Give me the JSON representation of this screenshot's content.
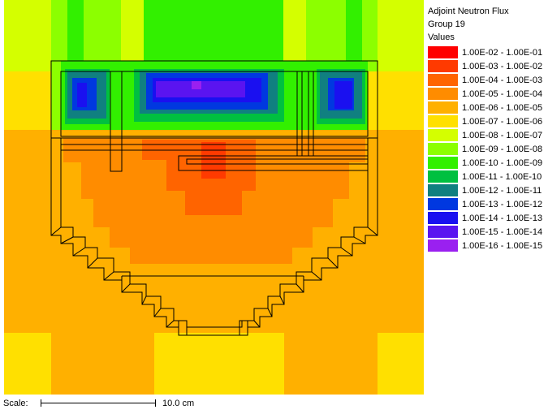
{
  "legend": {
    "title": "Adjoint Neutron Flux",
    "subtitle": "Group 19",
    "header": "Values",
    "items": [
      {
        "label": "1.00E-02 - 1.00E-01",
        "color": "#ff0000"
      },
      {
        "label": "1.00E-03 - 1.00E-02",
        "color": "#ff3a00"
      },
      {
        "label": "1.00E-04 - 1.00E-03",
        "color": "#ff6400"
      },
      {
        "label": "1.00E-05 - 1.00E-04",
        "color": "#ff8c00"
      },
      {
        "label": "1.00E-06 - 1.00E-05",
        "color": "#ffb000"
      },
      {
        "label": "1.00E-07 - 1.00E-06",
        "color": "#ffe000"
      },
      {
        "label": "1.00E-08 - 1.00E-07",
        "color": "#d4ff00"
      },
      {
        "label": "1.00E-09 - 1.00E-08",
        "color": "#8cff00"
      },
      {
        "label": "1.00E-10 - 1.00E-09",
        "color": "#32f000"
      },
      {
        "label": "1.00E-11 - 1.00E-10",
        "color": "#00c040"
      },
      {
        "label": "1.00E-12 - 1.00E-11",
        "color": "#108080"
      },
      {
        "label": "1.00E-13 - 1.00E-12",
        "color": "#0038e0"
      },
      {
        "label": "1.00E-14 - 1.00E-13",
        "color": "#1a10f0"
      },
      {
        "label": "1.00E-15 - 1.00E-14",
        "color": "#5a14f0"
      },
      {
        "label": "1.00E-16 - 1.00E-15",
        "color": "#9a20f0"
      }
    ]
  },
  "scale": {
    "label": "Scale:",
    "value": "10.0 cm"
  }
}
